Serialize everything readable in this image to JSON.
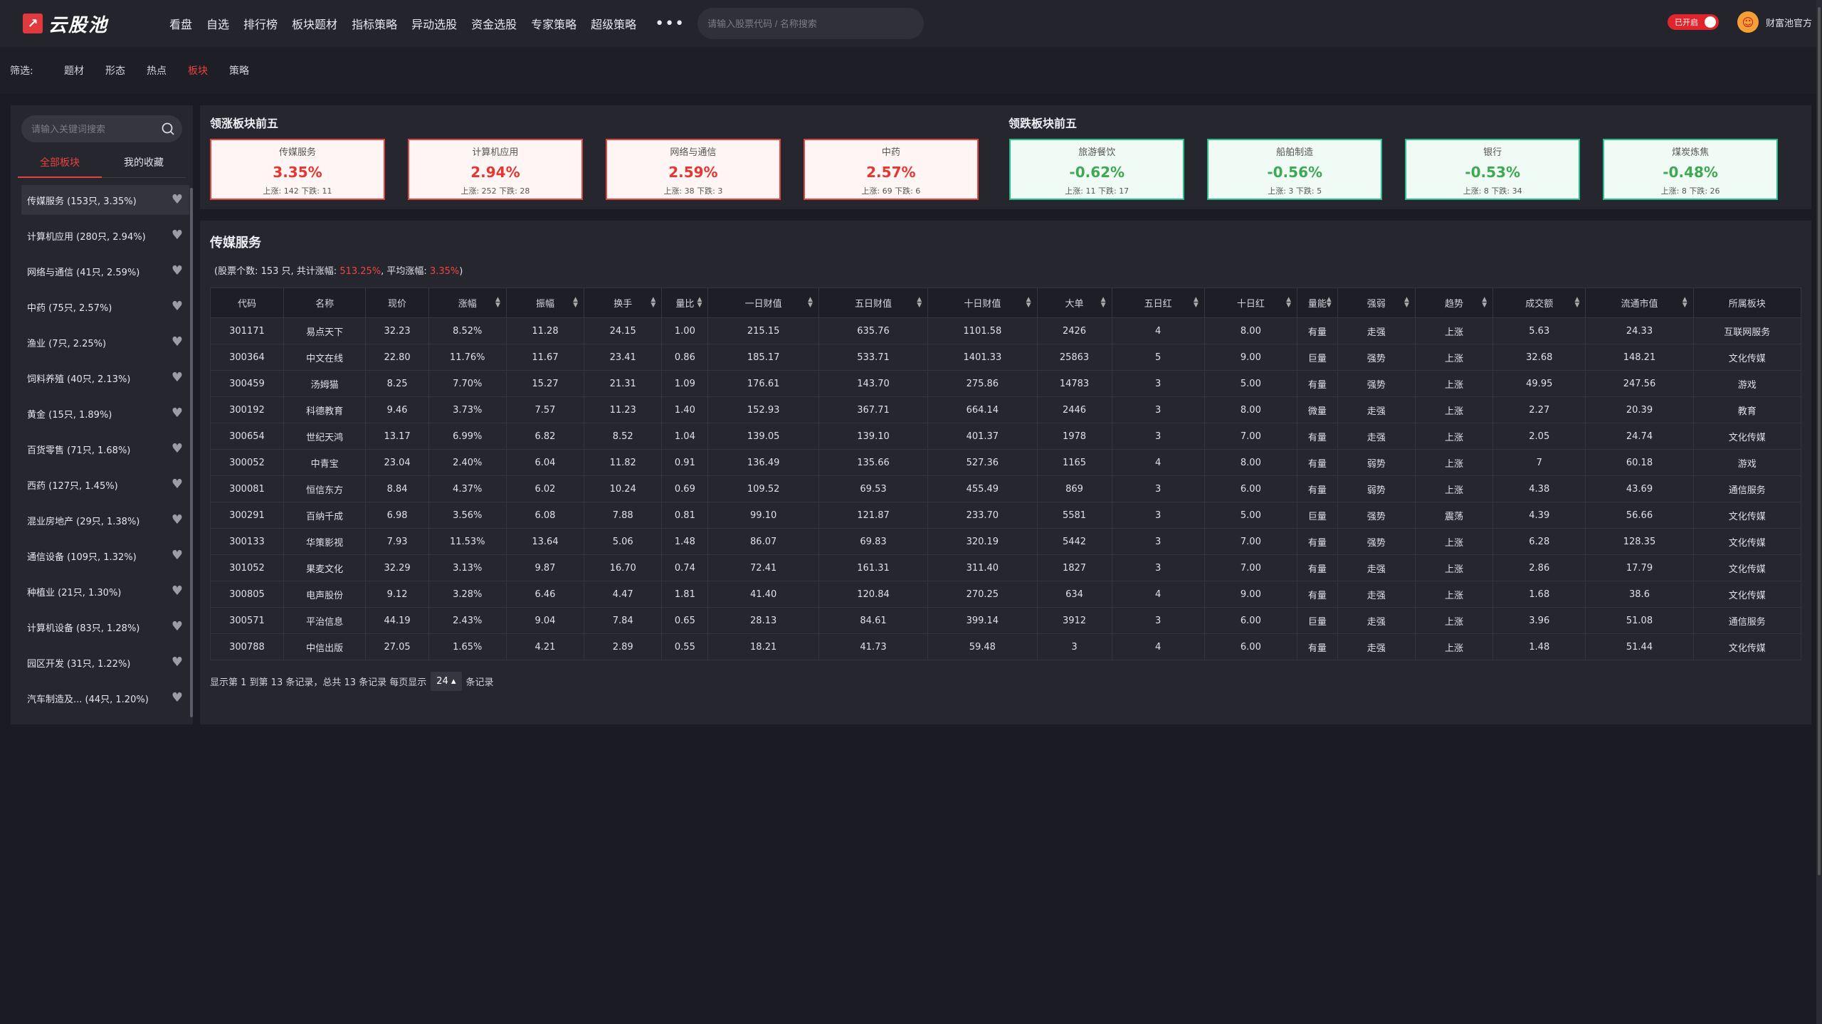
{
  "header": {
    "logo_text": "云股池",
    "nav": [
      "看盘",
      "自选",
      "排行榜",
      "板块题材",
      "指标策略",
      "异动选股",
      "资金选股",
      "专家策略",
      "超级策略"
    ],
    "more": "•••",
    "search_placeholder": "请输入股票代码 / 名称搜索",
    "toggle_label": "已开启",
    "user_name": "财富池官方"
  },
  "filter": {
    "label": "筛选:",
    "items": [
      "题材",
      "形态",
      "热点",
      "板块",
      "策略"
    ],
    "active": "板块"
  },
  "sidebar": {
    "search_placeholder": "请输入关键词搜索",
    "tabs": [
      "全部板块",
      "我的收藏"
    ],
    "items": [
      "传媒服务 (153只, 3.35%)",
      "计算机应用 (280只, 2.94%)",
      "网络与通信 (41只, 2.59%)",
      "中药 (75只, 2.57%)",
      "渔业 (7只, 2.25%)",
      "饲料养殖 (40只, 2.13%)",
      "黄金 (15只, 1.89%)",
      "百货零售 (71只, 1.68%)",
      "西药 (127只, 1.45%)",
      "混业房地产 (29只, 1.38%)",
      "通信设备 (109只, 1.32%)",
      "种植业 (21只, 1.30%)",
      "计算机设备 (83只, 1.28%)",
      "园区开发 (31只, 1.22%)",
      "汽车制造及... (44只, 1.20%)"
    ]
  },
  "top_up": {
    "title": "领涨板块前五",
    "cards": [
      {
        "name": "传媒服务",
        "pct": "3.35%",
        "ud": "上涨: 142 下跌: 11"
      },
      {
        "name": "计算机应用",
        "pct": "2.94%",
        "ud": "上涨: 252 下跌: 28"
      },
      {
        "name": "网络与通信",
        "pct": "2.59%",
        "ud": "上涨: 38 下跌: 3"
      },
      {
        "name": "中药",
        "pct": "2.57%",
        "ud": "上涨: 69 下跌: 6"
      }
    ]
  },
  "top_down": {
    "title": "领跌板块前五",
    "cards": [
      {
        "name": "旅游餐饮",
        "pct": "-0.62%",
        "ud": "上涨: 11 下跌: 17"
      },
      {
        "name": "船舶制造",
        "pct": "-0.56%",
        "ud": "上涨: 3 下跌: 5"
      },
      {
        "name": "银行",
        "pct": "-0.53%",
        "ud": "上涨: 8 下跌: 34"
      },
      {
        "name": "煤炭炼焦",
        "pct": "-0.48%",
        "ud": "上涨: 8 下跌: 26"
      }
    ]
  },
  "main": {
    "title": "传媒服务",
    "stats_prefix": "(股票个数: 153 只, 共计涨幅: ",
    "stats_total": "513.25%",
    "stats_mid": ", 平均涨幅: ",
    "stats_avg": "3.35%",
    "stats_suffix": ")",
    "columns": [
      "代码",
      "名称",
      "现价",
      "涨幅",
      "振幅",
      "换手",
      "量比",
      "一日财值",
      "五日财值",
      "十日财值",
      "大单",
      "五日红",
      "十日红",
      "量能",
      "强弱",
      "趋势",
      "成交额",
      "流通市值",
      "所属板块"
    ],
    "sortable": [
      false,
      false,
      false,
      true,
      true,
      true,
      true,
      true,
      true,
      true,
      true,
      true,
      true,
      true,
      true,
      true,
      true,
      true,
      false
    ],
    "rows": [
      [
        "301171",
        "易点天下",
        "32.23",
        "8.52%",
        "11.28",
        "24.15",
        "1.00",
        "215.15",
        "635.76",
        "1101.58",
        "2426",
        "4",
        "8.00",
        "有量",
        "走强",
        "上涨",
        "5.63",
        "24.33",
        "互联网服务"
      ],
      [
        "300364",
        "中文在线",
        "22.80",
        "11.76%",
        "11.67",
        "23.41",
        "0.86",
        "185.17",
        "533.71",
        "1401.33",
        "25863",
        "5",
        "9.00",
        "巨量",
        "强势",
        "上涨",
        "32.68",
        "148.21",
        "文化传媒"
      ],
      [
        "300459",
        "汤姆猫",
        "8.25",
        "7.70%",
        "15.27",
        "21.31",
        "1.09",
        "176.61",
        "143.70",
        "275.86",
        "14783",
        "3",
        "5.00",
        "有量",
        "强势",
        "上涨",
        "49.95",
        "247.56",
        "游戏"
      ],
      [
        "300192",
        "科德教育",
        "9.46",
        "3.73%",
        "7.57",
        "11.23",
        "1.40",
        "152.93",
        "367.71",
        "664.14",
        "2446",
        "3",
        "8.00",
        "微量",
        "走强",
        "上涨",
        "2.27",
        "20.39",
        "教育"
      ],
      [
        "300654",
        "世纪天鸿",
        "13.17",
        "6.99%",
        "6.82",
        "8.52",
        "1.04",
        "139.05",
        "139.10",
        "401.37",
        "1978",
        "3",
        "7.00",
        "有量",
        "走强",
        "上涨",
        "2.05",
        "24.74",
        "文化传媒"
      ],
      [
        "300052",
        "中青宝",
        "23.04",
        "2.40%",
        "6.04",
        "11.82",
        "0.91",
        "136.49",
        "135.66",
        "527.36",
        "1165",
        "4",
        "8.00",
        "有量",
        "弱势",
        "上涨",
        "7",
        "60.18",
        "游戏"
      ],
      [
        "300081",
        "恒信东方",
        "8.84",
        "4.37%",
        "6.02",
        "10.24",
        "0.69",
        "109.52",
        "69.53",
        "455.49",
        "869",
        "3",
        "6.00",
        "有量",
        "弱势",
        "上涨",
        "4.38",
        "43.69",
        "通信服务"
      ],
      [
        "300291",
        "百纳千成",
        "6.98",
        "3.56%",
        "6.08",
        "7.88",
        "0.81",
        "99.10",
        "121.87",
        "233.70",
        "5581",
        "3",
        "5.00",
        "巨量",
        "强势",
        "震荡",
        "4.39",
        "56.66",
        "文化传媒"
      ],
      [
        "300133",
        "华策影视",
        "7.93",
        "11.53%",
        "13.64",
        "5.06",
        "1.48",
        "86.07",
        "69.83",
        "320.19",
        "5442",
        "3",
        "7.00",
        "有量",
        "强势",
        "上涨",
        "6.28",
        "128.35",
        "文化传媒"
      ],
      [
        "301052",
        "果麦文化",
        "32.29",
        "3.13%",
        "9.87",
        "16.70",
        "0.74",
        "72.41",
        "161.31",
        "311.40",
        "1827",
        "3",
        "7.00",
        "有量",
        "走强",
        "上涨",
        "2.86",
        "17.79",
        "文化传媒"
      ],
      [
        "300805",
        "电声股份",
        "9.12",
        "3.28%",
        "6.46",
        "4.47",
        "1.81",
        "41.40",
        "120.84",
        "270.25",
        "634",
        "4",
        "9.00",
        "有量",
        "走强",
        "上涨",
        "1.68",
        "38.6",
        "文化传媒"
      ],
      [
        "300571",
        "平治信息",
        "44.19",
        "2.43%",
        "9.04",
        "7.84",
        "0.65",
        "28.13",
        "84.61",
        "399.14",
        "3912",
        "3",
        "6.00",
        "巨量",
        "走强",
        "上涨",
        "3.96",
        "51.08",
        "通信服务"
      ],
      [
        "300788",
        "中信出版",
        "27.05",
        "1.65%",
        "4.21",
        "2.89",
        "0.55",
        "18.21",
        "41.73",
        "59.48",
        "3",
        "4",
        "6.00",
        "有量",
        "走强",
        "上涨",
        "1.48",
        "51.44",
        "文化传媒"
      ]
    ],
    "pager_prefix": "显示第 1 到第 13 条记录，总共 13 条记录   每页显示",
    "page_size": "24 ▴",
    "pager_suffix": "条记录"
  },
  "colors": {
    "accent_red": "#e9413f",
    "up": "#e6362f",
    "down": "#3ea852"
  }
}
